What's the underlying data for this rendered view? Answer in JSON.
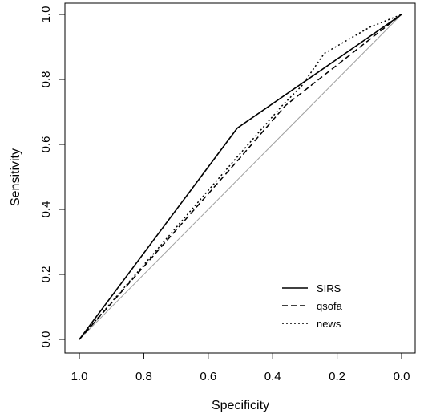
{
  "chart_data": {
    "type": "line",
    "title": "",
    "xlabel": "Specificity",
    "ylabel": "Sensitivity",
    "xlim": [
      1.0,
      0.0
    ],
    "ylim": [
      0.0,
      1.0
    ],
    "x_reversed": true,
    "x_ticks": [
      1.0,
      0.8,
      0.6,
      0.4,
      0.2,
      0.0
    ],
    "x_tick_labels": [
      "1.0",
      "0.8",
      "0.6",
      "0.4",
      "0.2",
      "0.0"
    ],
    "y_ticks": [
      0.0,
      0.2,
      0.4,
      0.6,
      0.8,
      1.0
    ],
    "y_tick_labels": [
      "0.0",
      "0.2",
      "0.4",
      "0.6",
      "0.8",
      "1.0"
    ],
    "grid": false,
    "legend_position": "bottom-right",
    "reference_line": {
      "from": [
        1.0,
        0.0
      ],
      "to": [
        0.0,
        1.0
      ],
      "color": "#a0a0a0"
    },
    "series": [
      {
        "name": "SIRS",
        "dash": "solid",
        "color": "#000000",
        "points": [
          [
            1.0,
            0.0
          ],
          [
            0.51,
            0.65
          ],
          [
            0.0,
            1.0
          ]
        ]
      },
      {
        "name": "qsofa",
        "dash": "dashed",
        "color": "#000000",
        "points": [
          [
            1.0,
            0.0
          ],
          [
            0.5,
            0.56
          ],
          [
            0.36,
            0.72
          ],
          [
            0.0,
            1.0
          ]
        ]
      },
      {
        "name": "news",
        "dash": "dotted",
        "color": "#000000",
        "points": [
          [
            1.0,
            0.0
          ],
          [
            0.52,
            0.55
          ],
          [
            0.37,
            0.72
          ],
          [
            0.31,
            0.78
          ],
          [
            0.24,
            0.88
          ],
          [
            0.1,
            0.96
          ],
          [
            0.0,
            1.0
          ]
        ]
      }
    ]
  }
}
